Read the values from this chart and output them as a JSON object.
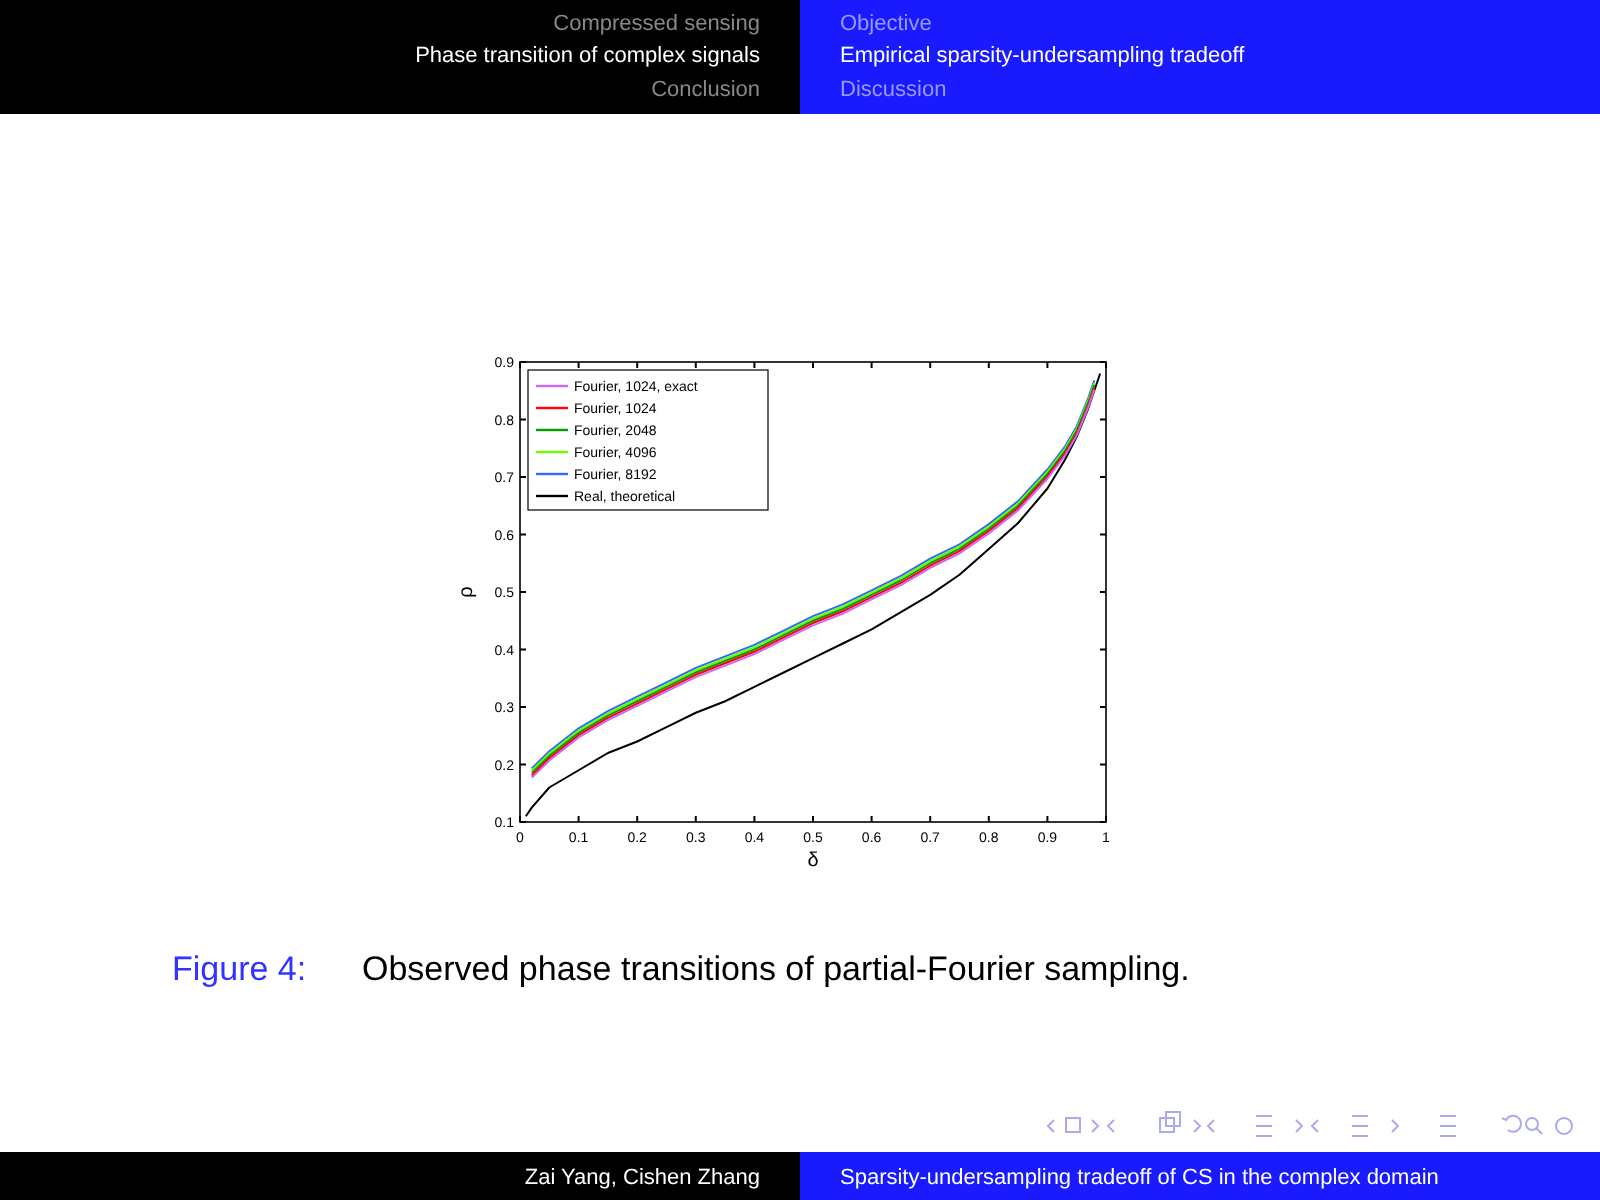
{
  "chart_data": {
    "type": "line",
    "xlabel": "δ",
    "ylabel": "ρ",
    "xlim": [
      0,
      1
    ],
    "ylim": [
      0.1,
      0.9
    ],
    "xticks": [
      0,
      0.1,
      0.2,
      0.3,
      0.4,
      0.5,
      0.6,
      0.7,
      0.8,
      0.9,
      1
    ],
    "yticks": [
      0.1,
      0.2,
      0.3,
      0.4,
      0.5,
      0.6,
      0.7,
      0.8,
      0.9
    ],
    "grid": false,
    "legend": "top left",
    "marker": "none",
    "line_style": "solid",
    "series": [
      {
        "name": "Fourier, 1024, exact",
        "color": "#cc66ff",
        "x": [
          0.02,
          0.05,
          0.1,
          0.15,
          0.2,
          0.25,
          0.3,
          0.35,
          0.4,
          0.45,
          0.5,
          0.55,
          0.6,
          0.65,
          0.7,
          0.75,
          0.8,
          0.85,
          0.9,
          0.93,
          0.95,
          0.97,
          0.98
        ],
        "values": [
          0.177,
          0.207,
          0.247,
          0.277,
          0.302,
          0.327,
          0.352,
          0.372,
          0.392,
          0.417,
          0.442,
          0.462,
          0.487,
          0.512,
          0.542,
          0.567,
          0.602,
          0.642,
          0.697,
          0.737,
          0.772,
          0.822,
          0.852
        ]
      },
      {
        "name": "Fourier, 1024",
        "color": "#ff0000",
        "x": [
          0.02,
          0.05,
          0.1,
          0.15,
          0.2,
          0.25,
          0.3,
          0.35,
          0.4,
          0.45,
          0.5,
          0.55,
          0.6,
          0.65,
          0.7,
          0.75,
          0.8,
          0.85,
          0.9,
          0.93,
          0.95,
          0.97,
          0.98
        ],
        "values": [
          0.181,
          0.211,
          0.251,
          0.281,
          0.306,
          0.331,
          0.356,
          0.376,
          0.396,
          0.421,
          0.446,
          0.466,
          0.491,
          0.516,
          0.546,
          0.571,
          0.606,
          0.646,
          0.701,
          0.741,
          0.776,
          0.826,
          0.856
        ]
      },
      {
        "name": "Fourier, 2048",
        "color": "#00a000",
        "x": [
          0.02,
          0.05,
          0.1,
          0.15,
          0.2,
          0.25,
          0.3,
          0.35,
          0.4,
          0.45,
          0.5,
          0.55,
          0.6,
          0.65,
          0.7,
          0.75,
          0.8,
          0.85,
          0.9,
          0.93,
          0.95,
          0.97,
          0.98
        ],
        "values": [
          0.185,
          0.215,
          0.255,
          0.285,
          0.31,
          0.335,
          0.36,
          0.38,
          0.4,
          0.425,
          0.45,
          0.47,
          0.495,
          0.52,
          0.55,
          0.575,
          0.61,
          0.65,
          0.705,
          0.745,
          0.78,
          0.83,
          0.86
        ]
      },
      {
        "name": "Fourier, 4096",
        "color": "#66ff00",
        "x": [
          0.02,
          0.05,
          0.1,
          0.15,
          0.2,
          0.25,
          0.3,
          0.35,
          0.4,
          0.45,
          0.5,
          0.55,
          0.6,
          0.65,
          0.7,
          0.75,
          0.8,
          0.85,
          0.9,
          0.93,
          0.95,
          0.97,
          0.98
        ],
        "values": [
          0.189,
          0.219,
          0.259,
          0.289,
          0.314,
          0.339,
          0.364,
          0.384,
          0.404,
          0.429,
          0.454,
          0.474,
          0.499,
          0.524,
          0.554,
          0.579,
          0.614,
          0.654,
          0.709,
          0.749,
          0.784,
          0.834,
          0.864
        ]
      },
      {
        "name": "Fourier, 8192",
        "color": "#3366ff",
        "x": [
          0.02,
          0.05,
          0.1,
          0.15,
          0.2,
          0.25,
          0.3,
          0.35,
          0.4,
          0.45,
          0.5,
          0.55,
          0.6,
          0.65,
          0.7,
          0.75,
          0.8,
          0.85,
          0.9,
          0.93,
          0.95,
          0.97,
          0.98
        ],
        "values": [
          0.193,
          0.223,
          0.263,
          0.293,
          0.318,
          0.343,
          0.368,
          0.388,
          0.408,
          0.433,
          0.458,
          0.478,
          0.503,
          0.528,
          0.558,
          0.583,
          0.618,
          0.658,
          0.713,
          0.753,
          0.788,
          0.838,
          0.868
        ]
      },
      {
        "name": "Real, theoretical",
        "color": "#000000",
        "x": [
          0.01,
          0.02,
          0.05,
          0.1,
          0.15,
          0.2,
          0.25,
          0.3,
          0.35,
          0.4,
          0.45,
          0.5,
          0.55,
          0.6,
          0.65,
          0.7,
          0.75,
          0.8,
          0.85,
          0.9,
          0.93,
          0.95,
          0.97,
          0.99
        ],
        "values": [
          0.11,
          0.125,
          0.16,
          0.19,
          0.22,
          0.24,
          0.265,
          0.29,
          0.31,
          0.335,
          0.36,
          0.385,
          0.41,
          0.435,
          0.465,
          0.495,
          0.53,
          0.575,
          0.62,
          0.68,
          0.73,
          0.77,
          0.82,
          0.88
        ]
      }
    ],
    "annotations": [
      "Compressed sensing",
      "Phase transition of complex signals",
      "Conclusion",
      "Objective",
      "Empirical sparsity-undersampling tradeoff",
      "Discussion",
      "Figure 4:",
      "Observed phase transitions of partial-Fourier sampling.",
      "Zai Yang, Cishen Zhang",
      "Sparsity-undersampling tradeoff of CS in the complex domain"
    ]
  }
}
